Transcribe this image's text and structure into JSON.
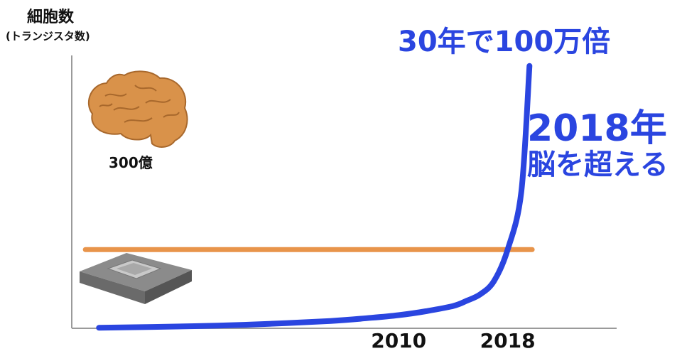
{
  "chart_data": {
    "type": "line",
    "ylabel": "細胞数",
    "ylabel_sub": "(トランジスタ数)",
    "x_ticks": [
      "2010",
      "2018"
    ],
    "series": [
      {
        "color": "#2a45e0",
        "x": [
          1988,
          1995,
          2000,
          2005,
          2008,
          2010,
          2012,
          2014,
          2015,
          2016,
          2017,
          2018,
          2019,
          2019.6
        ],
        "y": [
          0.2,
          0.8,
          1.6,
          2.8,
          4.0,
          5.0,
          6.5,
          8.5,
          10.5,
          13.0,
          18.0,
          30.0,
          52.0,
          100.0
        ]
      }
    ],
    "reference_line": {
      "label": "300億",
      "value": 30,
      "color": "#e8944a"
    },
    "annotations": {
      "growth": "30年で100万倍",
      "year": "2018年",
      "event": "脳を超える"
    },
    "xlim": [
      1986,
      2026
    ],
    "ylim": [
      0,
      104
    ]
  },
  "icons": [
    "brain-icon",
    "cpu-chip-icon"
  ]
}
